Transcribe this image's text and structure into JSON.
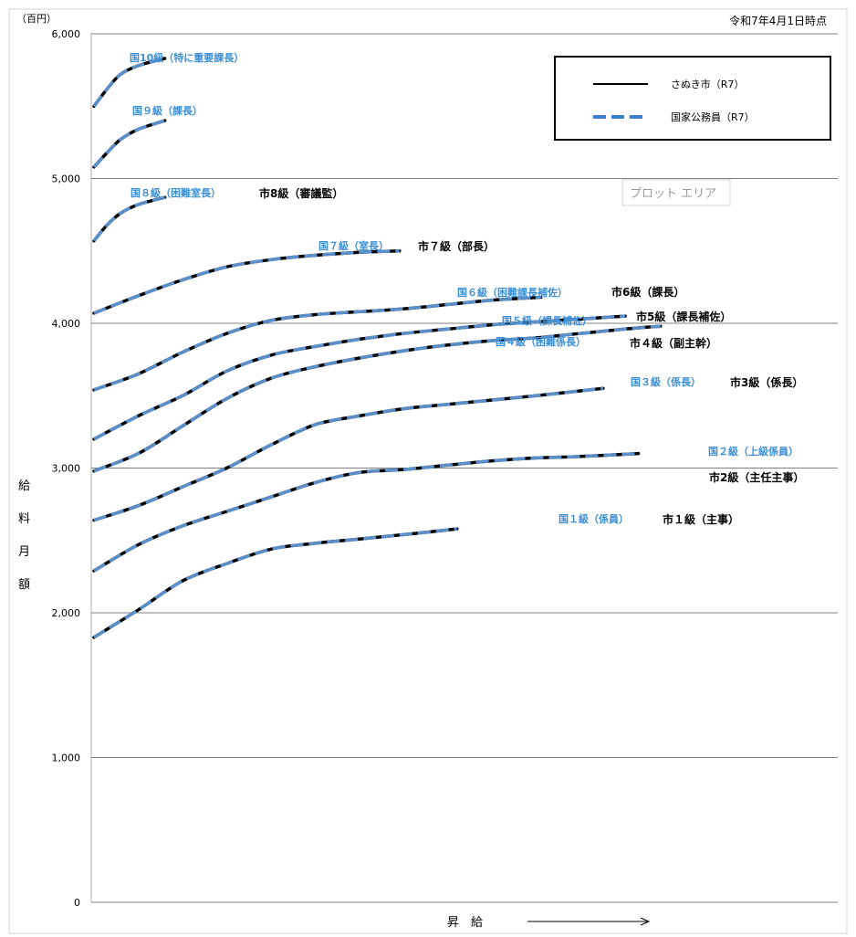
{
  "header": {
    "unit": "（百円）",
    "date": "令和7年4月1日時点"
  },
  "plot_tooltip": "プロット エリア",
  "chart_data": {
    "type": "line",
    "ylabel_chars": [
      "給",
      "料",
      "月",
      "額"
    ],
    "xlabel": "昇　給",
    "ylim": [
      0,
      6000
    ],
    "yticks": [
      0,
      1000,
      2000,
      3000,
      4000,
      5000,
      6000
    ],
    "ytick_labels": [
      "0",
      "1,000",
      "2,000",
      "3,000",
      "4,000",
      "5,000",
      "6,000"
    ],
    "grid": "horizontal",
    "legend_position": "top-right",
    "legend": [
      {
        "label": "さぬき市（R7）",
        "style": "solid",
        "color": "#000000"
      },
      {
        "label": "国家公務員（R7）",
        "style": "dashed",
        "color": "#3d7ccf"
      }
    ],
    "colors": {
      "koku": "#5b8fc9",
      "shi": "#000000",
      "koku_label": "#3d8fd6"
    },
    "series": [
      {
        "koku_label": "国10級（特に重要課長）",
        "shi_label": "",
        "points": [
          [
            0,
            5500
          ],
          [
            0.3,
            5620
          ],
          [
            0.6,
            5720
          ],
          [
            1.0,
            5780
          ],
          [
            1.6,
            5830
          ]
        ]
      },
      {
        "koku_label": "国９級（課長）",
        "shi_label": "",
        "points": [
          [
            0,
            5080
          ],
          [
            0.3,
            5180
          ],
          [
            0.6,
            5270
          ],
          [
            1.0,
            5340
          ],
          [
            1.6,
            5400
          ]
        ]
      },
      {
        "koku_label": "国８級（困難室長）",
        "shi_label": "市8級（審議監）",
        "points": [
          [
            0,
            4570
          ],
          [
            0.3,
            4680
          ],
          [
            0.6,
            4760
          ],
          [
            1.0,
            4820
          ],
          [
            1.6,
            4870
          ]
        ]
      },
      {
        "koku_label": "国７級（室長）",
        "shi_label": "市７級（部長）",
        "points": [
          [
            0,
            4070
          ],
          [
            1,
            4190
          ],
          [
            2,
            4300
          ],
          [
            3,
            4390
          ],
          [
            4,
            4440
          ],
          [
            5,
            4470
          ],
          [
            6,
            4490
          ],
          [
            6.9,
            4500
          ]
        ]
      },
      {
        "koku_label": "国６級（困難課長補佐）",
        "shi_label": "市6級（課長）",
        "points": [
          [
            0,
            3540
          ],
          [
            1,
            3650
          ],
          [
            2,
            3800
          ],
          [
            3,
            3930
          ],
          [
            4,
            4020
          ],
          [
            5,
            4060
          ],
          [
            6,
            4080
          ],
          [
            7,
            4100
          ],
          [
            8,
            4130
          ],
          [
            9,
            4160
          ],
          [
            10.1,
            4180
          ]
        ]
      },
      {
        "koku_label": "国５級（課長補佐）",
        "shi_label": "市5級（課長補佐）",
        "points": [
          [
            0,
            3200
          ],
          [
            1,
            3360
          ],
          [
            2,
            3500
          ],
          [
            3,
            3670
          ],
          [
            4,
            3780
          ],
          [
            5,
            3840
          ],
          [
            6,
            3890
          ],
          [
            7,
            3930
          ],
          [
            8,
            3960
          ],
          [
            9,
            3990
          ],
          [
            10,
            4010
          ],
          [
            11,
            4030
          ],
          [
            12.0,
            4050
          ]
        ]
      },
      {
        "koku_label": "国４級（困難係長）",
        "shi_label": "市４級（副主幹）",
        "points": [
          [
            0,
            2980
          ],
          [
            1,
            3100
          ],
          [
            2,
            3290
          ],
          [
            3,
            3480
          ],
          [
            4,
            3620
          ],
          [
            5,
            3700
          ],
          [
            6,
            3760
          ],
          [
            7,
            3810
          ],
          [
            8,
            3850
          ],
          [
            9,
            3880
          ],
          [
            10,
            3900
          ],
          [
            11,
            3930
          ],
          [
            12,
            3960
          ],
          [
            12.8,
            3980
          ]
        ]
      },
      {
        "koku_label": "国３級（係長）",
        "shi_label": "市3級（係長）",
        "points": [
          [
            0,
            2640
          ],
          [
            1,
            2740
          ],
          [
            2,
            2870
          ],
          [
            3,
            3000
          ],
          [
            4,
            3160
          ],
          [
            5,
            3300
          ],
          [
            6,
            3360
          ],
          [
            7,
            3410
          ],
          [
            8,
            3440
          ],
          [
            9,
            3470
          ],
          [
            10,
            3500
          ],
          [
            11.5,
            3550
          ]
        ]
      },
      {
        "koku_label": "国２級（上級係員）",
        "shi_label": "市2級（主任主事）",
        "points": [
          [
            0,
            2290
          ],
          [
            1,
            2470
          ],
          [
            2,
            2600
          ],
          [
            3,
            2700
          ],
          [
            4,
            2800
          ],
          [
            5,
            2900
          ],
          [
            6,
            2970
          ],
          [
            7,
            2990
          ],
          [
            8,
            3020
          ],
          [
            9,
            3050
          ],
          [
            10,
            3070
          ],
          [
            11,
            3080
          ],
          [
            12.3,
            3100
          ]
        ]
      },
      {
        "koku_label": "国１級（係員）",
        "shi_label": "市１級（主事）",
        "points": [
          [
            0,
            1830
          ],
          [
            1,
            2020
          ],
          [
            2,
            2220
          ],
          [
            3,
            2340
          ],
          [
            4,
            2440
          ],
          [
            5,
            2480
          ],
          [
            6,
            2510
          ],
          [
            7,
            2540
          ],
          [
            8.2,
            2580
          ]
        ]
      }
    ]
  }
}
